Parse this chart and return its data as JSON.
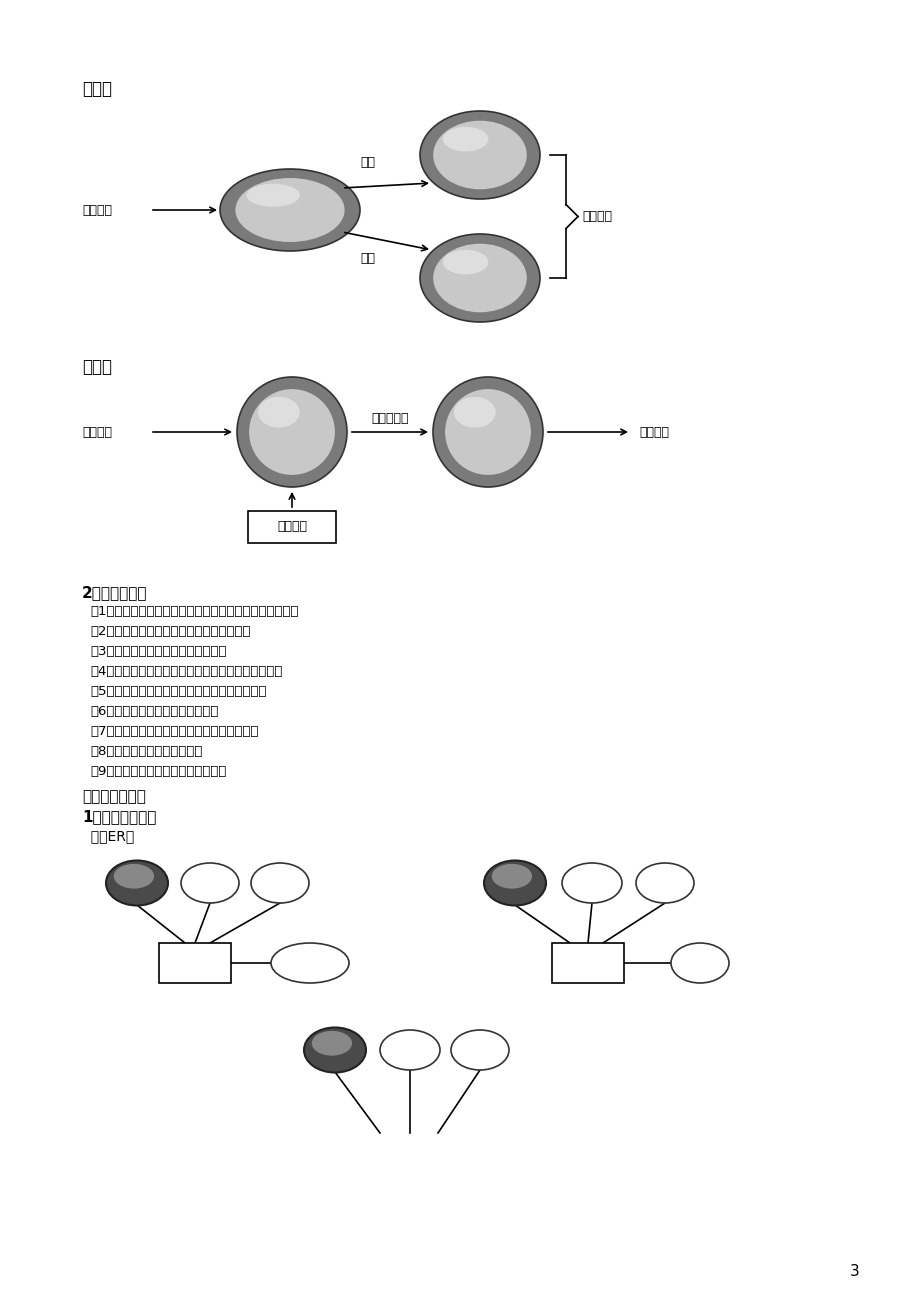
{
  "bg_color": "#ffffff",
  "page_number": "3",
  "section4_title": "第四层",
  "section5_title": "第五层",
  "func_title": "2．功能需求：",
  "func_items": [
    "（1）实现学生基本情况的录入，修改，删除等基本操作。",
    "（2）对学生基本信息提供灵活的查询方式。",
    "（3）完成一个班级的学期选课功能。",
    "（4）实现学生成绩的录入，修改，删除等基本操作。",
    "（5）能方便的对学生的个人学期成绩进行查询。",
    "（6）具有成绩统计，排名等功能。",
    "（7）具有留级，休学等特殊情况的处理功能。",
    "（8）能输出常用的各种报表。",
    "（9）具有数据备份和数据恢复功能。"
  ],
  "db_title": "二．数据库设计",
  "concept_title": "1．概念结构设计",
  "er_subtitle": "  局部ER图"
}
